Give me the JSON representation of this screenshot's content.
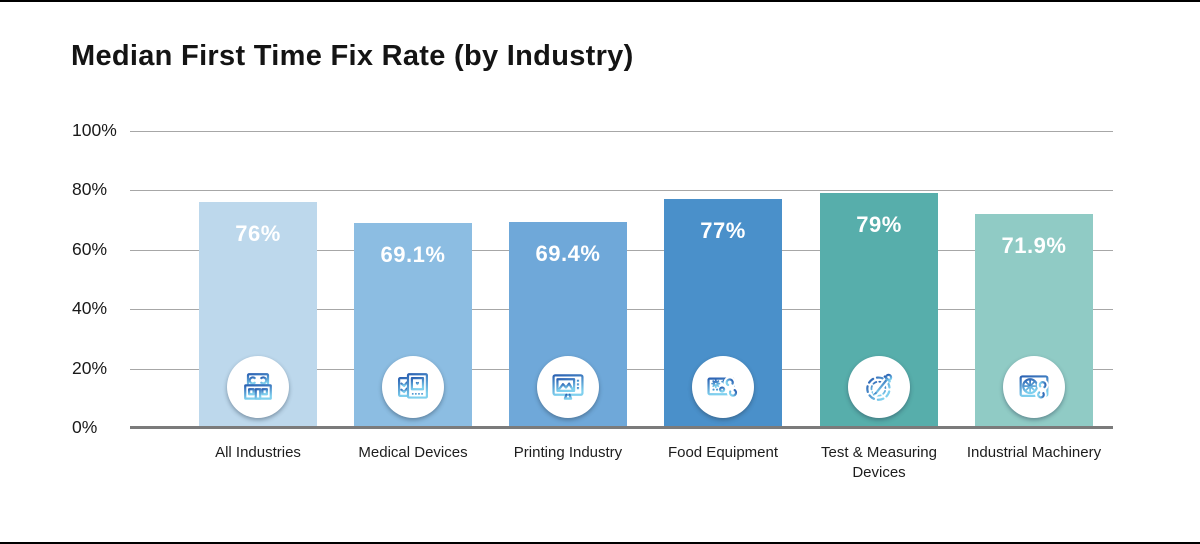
{
  "chart_data": {
    "type": "bar",
    "title": "Median First Time Fix Rate (by Industry)",
    "categories": [
      "All Industries",
      "Medical Devices",
      "Printing Industry",
      "Food Equipment",
      "Test & Measuring Devices",
      "Industrial Machinery"
    ],
    "values": [
      76,
      69.1,
      69.4,
      77,
      79,
      71.9
    ],
    "value_labels": [
      "76%",
      "69.1%",
      "69.4%",
      "77%",
      "79%",
      "71.9%"
    ],
    "bar_colors": [
      "#bdd8ec",
      "#8cbde2",
      "#6fa8d9",
      "#4a90ca",
      "#57aeab",
      "#90cbc5"
    ],
    "bar_icons": [
      "storefront-wrench-icon",
      "medical-monitor-icon",
      "print-monitor-icon",
      "equipment-wrench-icon",
      "gauge-dropper-icon",
      "machine-fan-wrench-icon"
    ],
    "xlabel": "",
    "ylabel": "",
    "ylim": [
      0,
      100
    ],
    "y_ticks": [
      {
        "value": 0,
        "label": "0%"
      },
      {
        "value": 20,
        "label": "20%"
      },
      {
        "value": 40,
        "label": "40%"
      },
      {
        "value": 60,
        "label": "60%"
      },
      {
        "value": 80,
        "label": "80%"
      },
      {
        "value": 100,
        "label": "100%"
      }
    ],
    "grid": "horizontal",
    "legend": "none"
  },
  "colors": {
    "background": "#ffffff",
    "frame_border": "#000000",
    "gridline": "#a7a7a7",
    "axis_baseline": "#7b7b7b",
    "title_text": "#141414",
    "tick_text": "#1a1a1a",
    "category_text": "#1d1d1d",
    "bar_value_text": "#ffffff",
    "icon_circle_bg": "#ffffff",
    "icon_stroke_dark": "#2b62b3",
    "icon_stroke_light": "#7fd0ee"
  }
}
